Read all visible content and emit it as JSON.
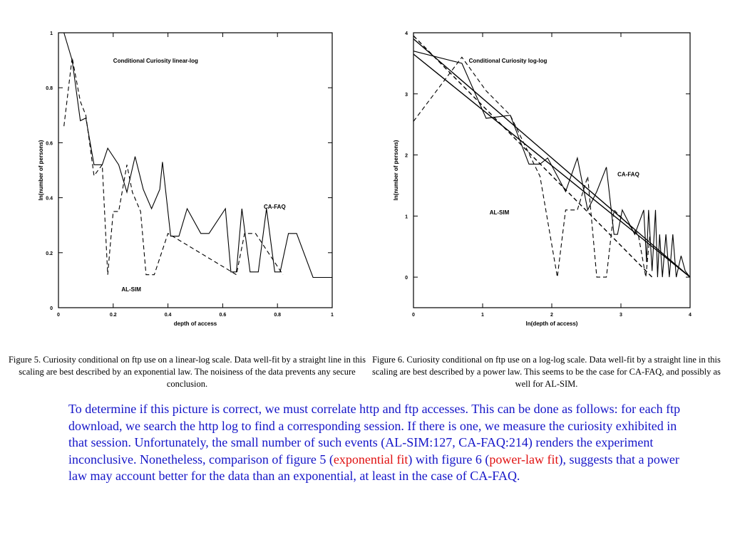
{
  "chart_data": [
    {
      "type": "line",
      "title": "Conditional Curiosity linear-log",
      "xlabel": "depth of access",
      "ylabel": "ln(number of persons)",
      "xlim": [
        0,
        1
      ],
      "ylim": [
        0,
        1
      ],
      "xticks": [
        "0",
        "0.2",
        "0.4",
        "0.6",
        "0.8",
        "1"
      ],
      "yticks": [
        "0",
        "0.2",
        "0.4",
        "0.6",
        "0.8",
        "1"
      ],
      "annotations": [
        {
          "text": "CA-FAQ",
          "x": 0.75,
          "y": 0.36
        },
        {
          "text": "AL-SIM",
          "x": 0.23,
          "y": 0.06
        }
      ],
      "series": [
        {
          "name": "CA-FAQ",
          "style": "solid",
          "x": [
            0.02,
            0.05,
            0.08,
            0.1,
            0.13,
            0.16,
            0.18,
            0.22,
            0.25,
            0.28,
            0.31,
            0.34,
            0.37,
            0.38,
            0.41,
            0.44,
            0.47,
            0.52,
            0.55,
            0.61,
            0.63,
            0.65,
            0.67,
            0.7,
            0.73,
            0.76,
            0.79,
            0.81,
            0.84,
            0.87,
            0.93,
            0.96,
            1.0
          ],
          "y": [
            1.0,
            0.9,
            0.68,
            0.69,
            0.52,
            0.52,
            0.58,
            0.52,
            0.42,
            0.55,
            0.43,
            0.36,
            0.43,
            0.53,
            0.26,
            0.26,
            0.36,
            0.27,
            0.27,
            0.36,
            0.13,
            0.13,
            0.36,
            0.13,
            0.13,
            0.36,
            0.13,
            0.13,
            0.27,
            0.27,
            0.11,
            0.11,
            0.11
          ]
        },
        {
          "name": "AL-SIM",
          "style": "dashed",
          "x": [
            0.02,
            0.05,
            0.08,
            0.1,
            0.13,
            0.16,
            0.18,
            0.2,
            0.22,
            0.25,
            0.27,
            0.3,
            0.32,
            0.35,
            0.4,
            0.65,
            0.68,
            0.72,
            0.82
          ],
          "y": [
            0.66,
            0.91,
            0.75,
            0.7,
            0.48,
            0.52,
            0.12,
            0.35,
            0.35,
            0.52,
            0.42,
            0.35,
            0.12,
            0.12,
            0.27,
            0.12,
            0.27,
            0.27,
            0.12
          ]
        }
      ]
    },
    {
      "type": "line",
      "title": "Conditional Curiosity log-log",
      "xlabel": "ln(depth of access)",
      "ylabel": "ln(number of persons)",
      "xlim": [
        0,
        4
      ],
      "ylim": [
        -0.5,
        4
      ],
      "xticks": [
        "0",
        "1",
        "2",
        "3",
        "4"
      ],
      "yticks": [
        "0",
        "1",
        "2",
        "3",
        "4"
      ],
      "annotations": [
        {
          "text": "CA-FAQ",
          "x": 2.95,
          "y": 1.65
        },
        {
          "text": "AL-SIM",
          "x": 1.1,
          "y": 1.03
        }
      ],
      "series": [
        {
          "name": "CA-FAQ",
          "style": "solid",
          "x": [
            0.0,
            0.7,
            1.05,
            1.4,
            1.67,
            1.83,
            1.94,
            2.2,
            2.37,
            2.52,
            2.65,
            2.79,
            2.9,
            2.95,
            3.02,
            3.2,
            3.33,
            3.37,
            3.4,
            3.45,
            3.5,
            3.53,
            3.56,
            3.6,
            3.65,
            3.7,
            3.75,
            3.8,
            3.87,
            3.93,
            4.0
          ],
          "y": [
            3.7,
            3.5,
            2.6,
            2.65,
            1.85,
            1.85,
            1.95,
            1.4,
            1.95,
            1.1,
            1.4,
            1.8,
            0.7,
            0.7,
            1.1,
            0.7,
            1.1,
            0.25,
            1.1,
            0.1,
            1.1,
            0.0,
            0.7,
            0.0,
            0.7,
            0.0,
            0.7,
            0.0,
            0.35,
            0.1,
            0.0
          ]
        },
        {
          "name": "AL-SIM",
          "style": "dashed",
          "x": [
            0.0,
            0.7,
            1.05,
            1.4,
            1.83,
            2.08,
            2.2,
            2.37,
            2.52,
            2.65,
            2.79,
            2.9,
            3.25,
            3.36,
            3.42
          ],
          "y": [
            2.55,
            3.6,
            3.05,
            2.65,
            1.65,
            0.0,
            1.1,
            1.1,
            1.65,
            0.0,
            0.0,
            1.1,
            0.7,
            0.0,
            0.7
          ]
        },
        {
          "name": "",
          "style": "solid-fit",
          "x": [
            0.0,
            4.0
          ],
          "y": [
            3.9,
            0.0
          ]
        },
        {
          "name": "",
          "style": "solid-fit",
          "x": [
            0.0,
            4.0
          ],
          "y": [
            3.65,
            0.0
          ]
        },
        {
          "name": "",
          "style": "dashed-fit",
          "x": [
            0.0,
            3.45
          ],
          "y": [
            3.95,
            0.0
          ]
        }
      ]
    }
  ],
  "captions": {
    "fig5": "Figure 5. Curiosity conditional on ftp use on a linear-log scale. Data well-fit by a straight line in this scaling are best described by an exponential law. The noisiness of the data prevents any secure conclusion.",
    "fig6": "Figure 6. Curiosity conditional on ftp use on a log-log scale. Data well-fit by a straight line in this scaling are best described by a power law. This seems to be the case for CA-FAQ, and possibly as well for AL-SIM."
  },
  "body": {
    "part1": "To determine if this picture is correct, we must correlate http and ftp accesses. This can be done as follows: for each ftp download, we search the http log to find a corresponding session. If there is one, we measure the curiosity exhibited in that session. Unfortunately, the small number of such events (AL-SIM:127, CA-FAQ:214) renders the experiment inconclusive. Nonetheless, comparison of figure 5 (",
    "highlight1": "exponential fit",
    "part2": ") with figure 6 (",
    "highlight2": "power-law fit",
    "part3": "), suggests that a power law may account better for the data than an exponential, at least in the case of CA-FAQ.",
    "highlight_color": "#e01010",
    "text_color": "#1515c8"
  }
}
